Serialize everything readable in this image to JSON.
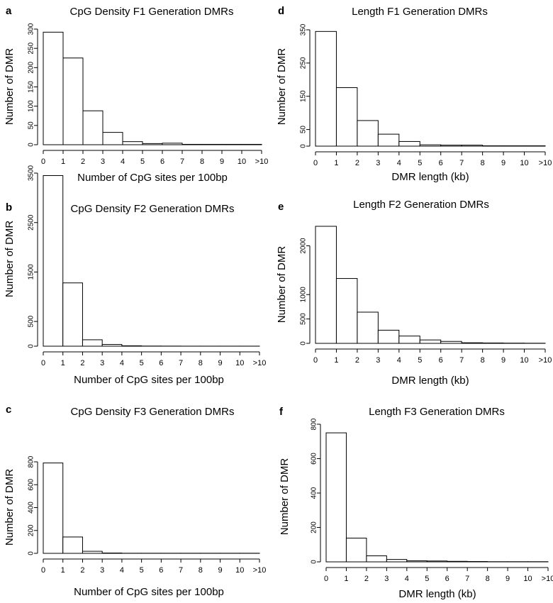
{
  "chart_data": [
    {
      "type": "bar",
      "panel_letter": "a",
      "title": "CpG Density F1 Generation DMRs",
      "xlabel": "Number of CpG sites per 100bp",
      "ylabel": "Number of DMR",
      "x_ticks": [
        "0",
        "1",
        "2",
        "3",
        "4",
        "5",
        "6",
        "7",
        "8",
        "9",
        "10",
        ">10"
      ],
      "bins": [
        [
          0,
          1
        ],
        [
          1,
          2
        ],
        [
          2,
          3
        ],
        [
          3,
          4
        ],
        [
          4,
          5
        ],
        [
          5,
          6
        ],
        [
          6,
          7
        ],
        [
          7,
          8
        ],
        [
          8,
          9
        ],
        [
          9,
          10
        ],
        [
          10,
          11
        ]
      ],
      "values": [
        292,
        225,
        88,
        32,
        8,
        3,
        4,
        1,
        1,
        1,
        1
      ],
      "y_ticks": [
        0,
        50,
        100,
        150,
        200,
        250,
        300
      ],
      "ylim": [
        0,
        300
      ]
    },
    {
      "type": "bar",
      "panel_letter": "d",
      "title": "Length F1 Generation DMRs",
      "xlabel": "DMR length (kb)",
      "ylabel": "Number of DMR",
      "x_ticks": [
        "0",
        "1",
        "2",
        "3",
        "4",
        "5",
        "6",
        "7",
        "8",
        "9",
        "10",
        ">10"
      ],
      "bins": [
        [
          0,
          1
        ],
        [
          1,
          2
        ],
        [
          2,
          3
        ],
        [
          3,
          4
        ],
        [
          4,
          5
        ],
        [
          5,
          6
        ],
        [
          6,
          7
        ],
        [
          7,
          8
        ],
        [
          8,
          9
        ],
        [
          9,
          10
        ],
        [
          10,
          11
        ]
      ],
      "values": [
        345,
        176,
        77,
        36,
        14,
        4,
        3,
        3,
        1,
        1,
        1
      ],
      "y_ticks": [
        0,
        50,
        150,
        250,
        350
      ],
      "ylim": [
        0,
        350
      ]
    },
    {
      "type": "bar",
      "panel_letter": "b",
      "title": "CpG Density F2 Generation DMRs",
      "xlabel": "Number of CpG sites per 100bp",
      "ylabel": "Number of DMR",
      "x_ticks": [
        "0",
        "1",
        "2",
        "3",
        "4",
        "5",
        "6",
        "7",
        "8",
        "9",
        "10",
        ">10"
      ],
      "bins": [
        [
          0,
          1
        ],
        [
          1,
          2
        ],
        [
          2,
          3
        ],
        [
          3,
          4
        ],
        [
          4,
          5
        ],
        [
          5,
          6
        ],
        [
          6,
          7
        ],
        [
          7,
          8
        ],
        [
          8,
          9
        ],
        [
          9,
          10
        ],
        [
          10,
          11
        ]
      ],
      "values": [
        3450,
        1280,
        130,
        35,
        8,
        3,
        2,
        1,
        1,
        1,
        1
      ],
      "y_ticks": [
        0,
        500,
        1500,
        2500,
        3500
      ],
      "ylim": [
        0,
        3500
      ]
    },
    {
      "type": "bar",
      "panel_letter": "e",
      "title": "Length F2 Generation DMRs",
      "xlabel": "DMR length (kb)",
      "ylabel": "Number of DMR",
      "x_ticks": [
        "0",
        "1",
        "2",
        "3",
        "4",
        "5",
        "6",
        "7",
        "8",
        "9",
        "10",
        ">10"
      ],
      "bins": [
        [
          0,
          1
        ],
        [
          1,
          2
        ],
        [
          2,
          3
        ],
        [
          3,
          4
        ],
        [
          4,
          5
        ],
        [
          5,
          6
        ],
        [
          6,
          7
        ],
        [
          7,
          8
        ],
        [
          8,
          9
        ],
        [
          9,
          10
        ],
        [
          10,
          11
        ]
      ],
      "values": [
        2420,
        1330,
        640,
        270,
        150,
        70,
        40,
        12,
        8,
        5,
        3
      ],
      "y_ticks": [
        0,
        500,
        1000,
        2000
      ],
      "ylim": [
        0,
        2400
      ]
    },
    {
      "type": "bar",
      "panel_letter": "c",
      "title": "CpG Density F3 Generation DMRs",
      "xlabel": "Number of CpG sites per 100bp",
      "ylabel": "Number of DMR",
      "x_ticks": [
        "0",
        "1",
        "2",
        "3",
        "4",
        "5",
        "6",
        "7",
        "8",
        "9",
        "10",
        ">10"
      ],
      "bins": [
        [
          0,
          1
        ],
        [
          1,
          2
        ],
        [
          2,
          3
        ],
        [
          3,
          4
        ],
        [
          4,
          5
        ],
        [
          5,
          6
        ],
        [
          6,
          7
        ],
        [
          7,
          8
        ],
        [
          8,
          9
        ],
        [
          9,
          10
        ],
        [
          10,
          11
        ]
      ],
      "values": [
        790,
        143,
        18,
        3,
        1,
        1,
        1,
        1,
        1,
        1,
        1
      ],
      "y_ticks": [
        0,
        200,
        400,
        600,
        800
      ],
      "ylim": [
        0,
        800
      ]
    },
    {
      "type": "bar",
      "panel_letter": "f",
      "title": "Length F3 Generation DMRs",
      "xlabel": "DMR length (kb)",
      "ylabel": "Number of DMR",
      "x_ticks": [
        "0",
        "1",
        "2",
        "3",
        "4",
        "5",
        "6",
        "7",
        "8",
        "9",
        "10",
        ">10"
      ],
      "bins": [
        [
          0,
          1
        ],
        [
          1,
          2
        ],
        [
          2,
          3
        ],
        [
          3,
          4
        ],
        [
          4,
          5
        ],
        [
          5,
          6
        ],
        [
          6,
          7
        ],
        [
          7,
          8
        ],
        [
          8,
          9
        ],
        [
          9,
          10
        ],
        [
          10,
          11
        ]
      ],
      "values": [
        750,
        138,
        35,
        14,
        6,
        5,
        3,
        2,
        1,
        1,
        1
      ],
      "y_ticks": [
        0,
        200,
        400,
        600,
        800
      ],
      "ylim": [
        0,
        800
      ]
    }
  ]
}
